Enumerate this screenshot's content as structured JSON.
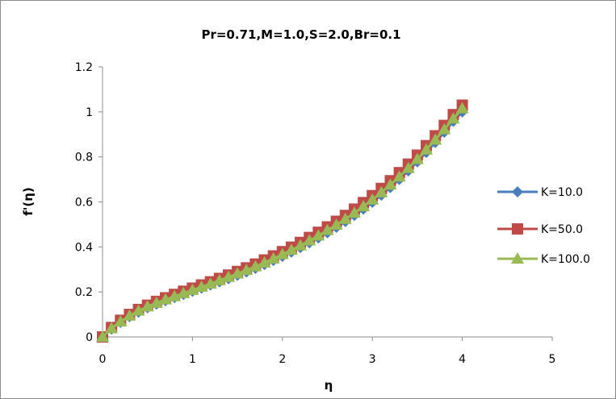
{
  "chart_data": {
    "type": "line",
    "title": "Pr=0.71,M=1.0,S=2.0,Br=0.1",
    "xlabel": "η",
    "ylabel": "f'(η)",
    "xlim": [
      0,
      5
    ],
    "ylim": [
      0,
      1.2
    ],
    "xticks": [
      "0",
      "1",
      "2",
      "3",
      "4",
      "5"
    ],
    "yticks": [
      "0",
      "0.2",
      "0.4",
      "0.6",
      "0.8",
      "1",
      "1.2"
    ],
    "xtick_values": [
      0,
      1,
      2,
      3,
      4,
      5
    ],
    "ytick_values": [
      0,
      0.2,
      0.4,
      0.6,
      0.8,
      1,
      1.2
    ],
    "grid": false,
    "legend_position": "right",
    "x": [
      0,
      0.1,
      0.2,
      0.3,
      0.4,
      0.5,
      0.6,
      0.7,
      0.8,
      0.9,
      1.0,
      1.1,
      1.2,
      1.3,
      1.4,
      1.5,
      1.6,
      1.7,
      1.8,
      1.9,
      2.0,
      2.1,
      2.2,
      2.3,
      2.4,
      2.5,
      2.6,
      2.7,
      2.8,
      2.9,
      3.0,
      3.1,
      3.2,
      3.3,
      3.4,
      3.5,
      3.6,
      3.7,
      3.8,
      3.9,
      4.0
    ],
    "series": [
      {
        "name": "K=10.0",
        "color": "#4a7ebb",
        "marker": "diamond",
        "values": [
          0,
          0.035,
          0.065,
          0.09,
          0.11,
          0.13,
          0.146,
          0.161,
          0.175,
          0.189,
          0.203,
          0.217,
          0.231,
          0.245,
          0.259,
          0.274,
          0.289,
          0.305,
          0.322,
          0.34,
          0.358,
          0.377,
          0.397,
          0.418,
          0.44,
          0.463,
          0.487,
          0.513,
          0.54,
          0.568,
          0.598,
          0.63,
          0.664,
          0.7,
          0.738,
          0.778,
          0.82,
          0.864,
          0.91,
          0.958,
          1.0
        ]
      },
      {
        "name": "K=50.0",
        "color": "#be4b48",
        "marker": "square",
        "values": [
          0,
          0.042,
          0.074,
          0.1,
          0.122,
          0.141,
          0.158,
          0.174,
          0.189,
          0.203,
          0.217,
          0.231,
          0.245,
          0.26,
          0.275,
          0.291,
          0.307,
          0.324,
          0.342,
          0.36,
          0.379,
          0.399,
          0.42,
          0.442,
          0.465,
          0.489,
          0.514,
          0.54,
          0.568,
          0.597,
          0.628,
          0.66,
          0.694,
          0.73,
          0.768,
          0.808,
          0.85,
          0.894,
          0.94,
          0.988,
          1.03
        ]
      },
      {
        "name": "K=100.0",
        "color": "#98b954",
        "marker": "triangle",
        "values": [
          0,
          0.038,
          0.068,
          0.094,
          0.116,
          0.135,
          0.151,
          0.166,
          0.18,
          0.194,
          0.208,
          0.222,
          0.236,
          0.251,
          0.266,
          0.281,
          0.297,
          0.313,
          0.33,
          0.348,
          0.367,
          0.386,
          0.406,
          0.428,
          0.45,
          0.474,
          0.498,
          0.524,
          0.551,
          0.58,
          0.61,
          0.642,
          0.676,
          0.712,
          0.75,
          0.79,
          0.832,
          0.876,
          0.922,
          0.97,
          1.015
        ]
      }
    ]
  }
}
